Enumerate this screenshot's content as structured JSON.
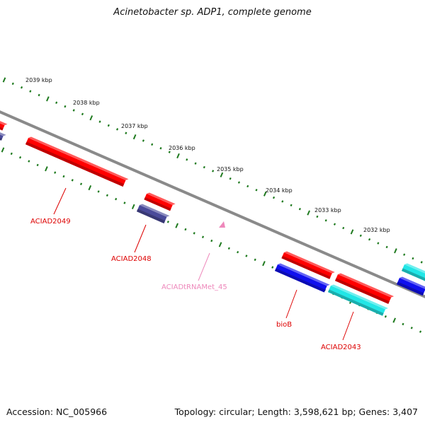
{
  "title": "Acinetobacter sp. ADP1, complete genome",
  "footer": {
    "accession": "Accession: NC_005966",
    "topology": "Topology: circular; Length: 3,598,621 bp; Genes: 3,407"
  },
  "colors": {
    "backbone": "#8a8a8a",
    "tick": "#1f7a1f",
    "cds_red": "#ff0000",
    "cds_blue": "#1010ee",
    "cds_cyan": "#22e6e6",
    "cds_slate": "#4a4a9a",
    "trna_pink": "#ee88bb",
    "label_red": "#dd0000",
    "label_pink": "#ee88bb"
  },
  "kbp_labels": [
    "2039 kbp",
    "2038 kbp",
    "2037 kbp",
    "2036 kbp",
    "2035 kbp",
    "2034 kbp",
    "2033 kbp",
    "2032 kbp"
  ],
  "features": [
    {
      "id": "f1",
      "color_key": "cds_red"
    },
    {
      "id": "f2",
      "color_key": "cds_slate"
    },
    {
      "id": "f3",
      "color_key": "cds_red"
    },
    {
      "id": "f4",
      "color_key": "cds_red"
    },
    {
      "id": "f5",
      "color_key": "cds_slate"
    },
    {
      "id": "f6",
      "color_key": "trna_pink"
    },
    {
      "id": "f7",
      "color_key": "cds_red"
    },
    {
      "id": "f8",
      "color_key": "cds_blue"
    },
    {
      "id": "f9",
      "color_key": "cds_red"
    },
    {
      "id": "f10",
      "color_key": "cds_cyan"
    },
    {
      "id": "f11",
      "color_key": "cds_cyan"
    },
    {
      "id": "f12",
      "color_key": "cds_blue"
    }
  ],
  "gene_labels": [
    {
      "text": "ACIAD2049",
      "color_key": "label_red"
    },
    {
      "text": "ACIAD2048",
      "color_key": "label_red"
    },
    {
      "text": "ACIADtRNAMet_45",
      "color_key": "label_pink"
    },
    {
      "text": "bioB",
      "color_key": "label_red"
    },
    {
      "text": "ACIAD2043",
      "color_key": "label_red"
    }
  ]
}
